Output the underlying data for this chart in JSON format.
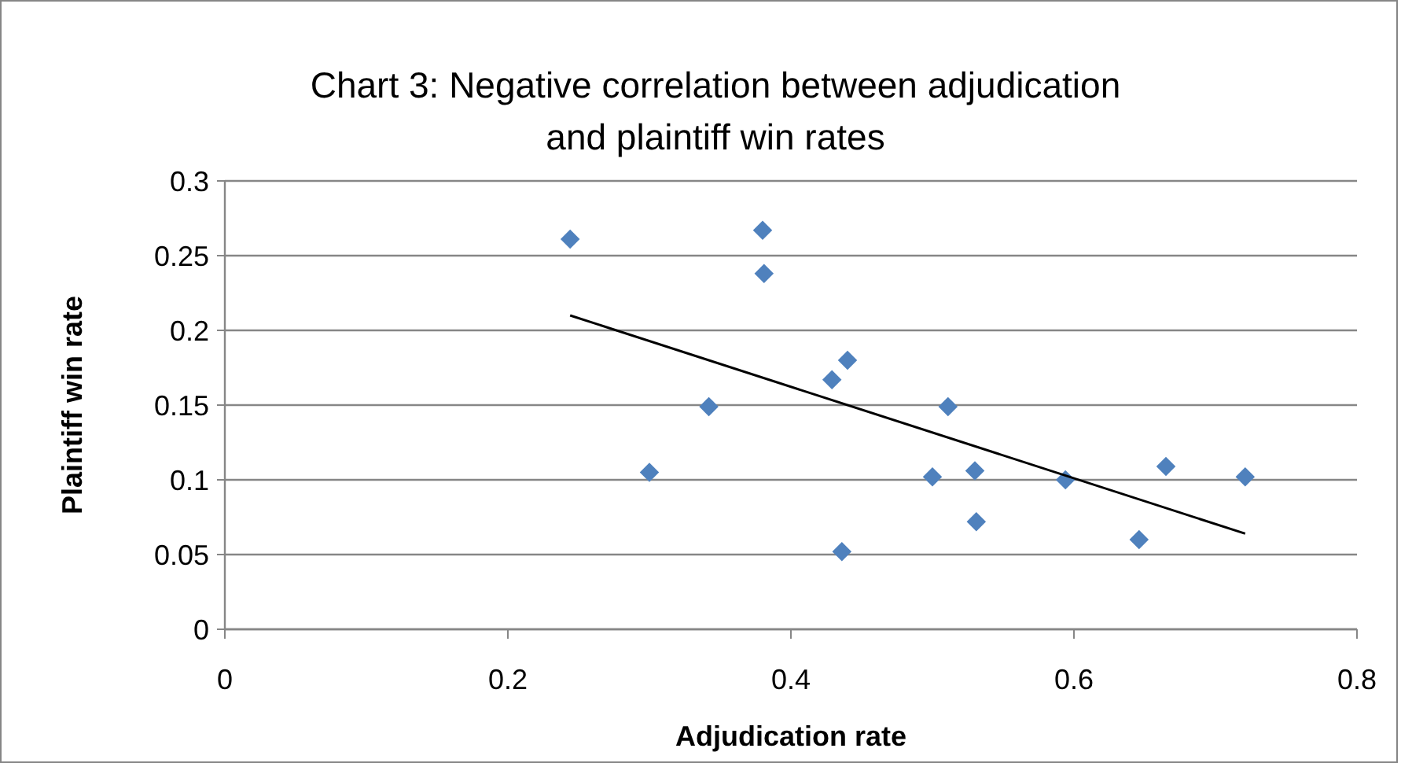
{
  "chart_data": {
    "type": "scatter",
    "title": "Chart 3: Negative correlation between adjudication and plaintiff win rates",
    "xlabel": "Adjudication rate",
    "ylabel": "Plaintiff win rate",
    "xlim": [
      0,
      0.8
    ],
    "xticks": [
      0,
      0.2,
      0.4,
      0.6,
      0.8
    ],
    "ylim": [
      0,
      0.3
    ],
    "yticks": [
      0,
      0.05,
      0.1,
      0.15,
      0.2,
      0.25,
      0.3
    ],
    "grid": "y",
    "marker": "diamond",
    "series": [
      {
        "color": "#4f81bd",
        "x": [
          0.244,
          0.38,
          0.381,
          0.342,
          0.3,
          0.429,
          0.44,
          0.511,
          0.5,
          0.53,
          0.531,
          0.436,
          0.594,
          0.665,
          0.646,
          0.721
        ],
        "values": [
          0.261,
          0.267,
          0.238,
          0.149,
          0.105,
          0.167,
          0.18,
          0.149,
          0.102,
          0.106,
          0.072,
          0.052,
          0.1,
          0.109,
          0.06,
          0.102
        ]
      },
      {
        "type": "line",
        "color": "#000000",
        "marker": "none",
        "x": [
          0.244,
          0.721
        ],
        "values": [
          0.21,
          0.064
        ]
      }
    ]
  }
}
